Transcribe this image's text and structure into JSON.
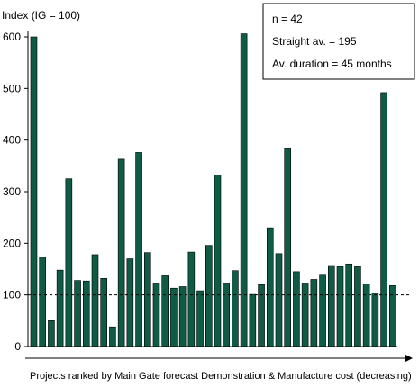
{
  "chart_data": {
    "type": "bar",
    "ylabel": "Index (IG = 100)",
    "xlabel": "Projects ranked by Main Gate forecast Demonstration & Manufacture cost (decreasing)",
    "ylim": [
      0,
      600
    ],
    "yticks": [
      0,
      100,
      200,
      300,
      400,
      500,
      600
    ],
    "reference_line": 100,
    "bar_color": "#0f5b45",
    "values": [
      600,
      173,
      50,
      148,
      325,
      128,
      127,
      178,
      132,
      38,
      363,
      170,
      376,
      182,
      123,
      137,
      113,
      116,
      183,
      108,
      196,
      332,
      123,
      147,
      606,
      101,
      120,
      230,
      180,
      383,
      145,
      123,
      130,
      140,
      157,
      155,
      160,
      155,
      121,
      104,
      492,
      118
    ],
    "annotations": [
      "n = 42",
      "Straight av. = 195",
      "Av. duration = 45 months"
    ]
  }
}
